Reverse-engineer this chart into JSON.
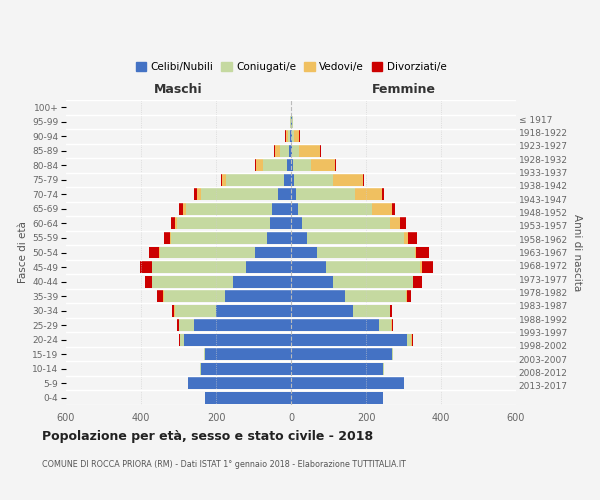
{
  "age_groups": [
    "0-4",
    "5-9",
    "10-14",
    "15-19",
    "20-24",
    "25-29",
    "30-34",
    "35-39",
    "40-44",
    "45-49",
    "50-54",
    "55-59",
    "60-64",
    "65-69",
    "70-74",
    "75-79",
    "80-84",
    "85-89",
    "90-94",
    "95-99",
    "100+"
  ],
  "birth_years": [
    "2013-2017",
    "2008-2012",
    "2003-2007",
    "1998-2002",
    "1993-1997",
    "1988-1992",
    "1983-1987",
    "1978-1982",
    "1973-1977",
    "1968-1972",
    "1963-1967",
    "1958-1962",
    "1953-1957",
    "1948-1952",
    "1943-1947",
    "1938-1942",
    "1933-1937",
    "1928-1932",
    "1923-1927",
    "1918-1922",
    "≤ 1917"
  ],
  "colors": {
    "celibe": "#4472C4",
    "coniugato": "#c5d9a0",
    "vedovo": "#f0c060",
    "divorziato": "#cc0000"
  },
  "maschi": {
    "celibe": [
      230,
      275,
      240,
      230,
      285,
      260,
      200,
      175,
      155,
      120,
      95,
      65,
      55,
      50,
      35,
      18,
      10,
      5,
      2,
      1,
      0
    ],
    "coniugato": [
      0,
      0,
      2,
      2,
      10,
      38,
      110,
      165,
      215,
      250,
      255,
      255,
      250,
      230,
      205,
      155,
      65,
      25,
      6,
      1,
      0
    ],
    "vedovo": [
      0,
      0,
      0,
      0,
      2,
      2,
      2,
      2,
      2,
      2,
      2,
      2,
      4,
      8,
      10,
      10,
      18,
      12,
      5,
      1,
      0
    ],
    "divorziato": [
      0,
      0,
      0,
      0,
      2,
      5,
      5,
      15,
      18,
      30,
      28,
      18,
      12,
      10,
      10,
      5,
      4,
      3,
      2,
      0,
      0
    ]
  },
  "femmine": {
    "nubile": [
      245,
      300,
      245,
      270,
      310,
      235,
      165,
      145,
      112,
      92,
      68,
      42,
      28,
      18,
      12,
      8,
      4,
      3,
      2,
      2,
      1
    ],
    "coniugata": [
      0,
      0,
      2,
      2,
      10,
      32,
      98,
      162,
      212,
      252,
      262,
      258,
      235,
      198,
      158,
      105,
      50,
      18,
      5,
      2,
      0
    ],
    "vedova": [
      0,
      0,
      0,
      0,
      2,
      2,
      2,
      2,
      2,
      4,
      4,
      12,
      28,
      52,
      72,
      78,
      62,
      55,
      15,
      2,
      0
    ],
    "divorziata": [
      0,
      0,
      0,
      0,
      2,
      3,
      5,
      10,
      24,
      30,
      35,
      24,
      15,
      8,
      5,
      3,
      3,
      3,
      2,
      0,
      0
    ]
  },
  "xlim": 600,
  "title": "Popolazione per età, sesso e stato civile - 2018",
  "subtitle": "COMUNE DI ROCCA PRIORA (RM) - Dati ISTAT 1° gennaio 2018 - Elaborazione TUTTITALIA.IT",
  "xlabel_left": "Maschi",
  "xlabel_right": "Femmine",
  "ylabel_left": "Fasce di età",
  "ylabel_right": "Anni di nascita",
  "legend_labels": [
    "Celibi/Nubili",
    "Coniugati/e",
    "Vedovi/e",
    "Divorziati/e"
  ],
  "background_color": "#f4f4f4"
}
